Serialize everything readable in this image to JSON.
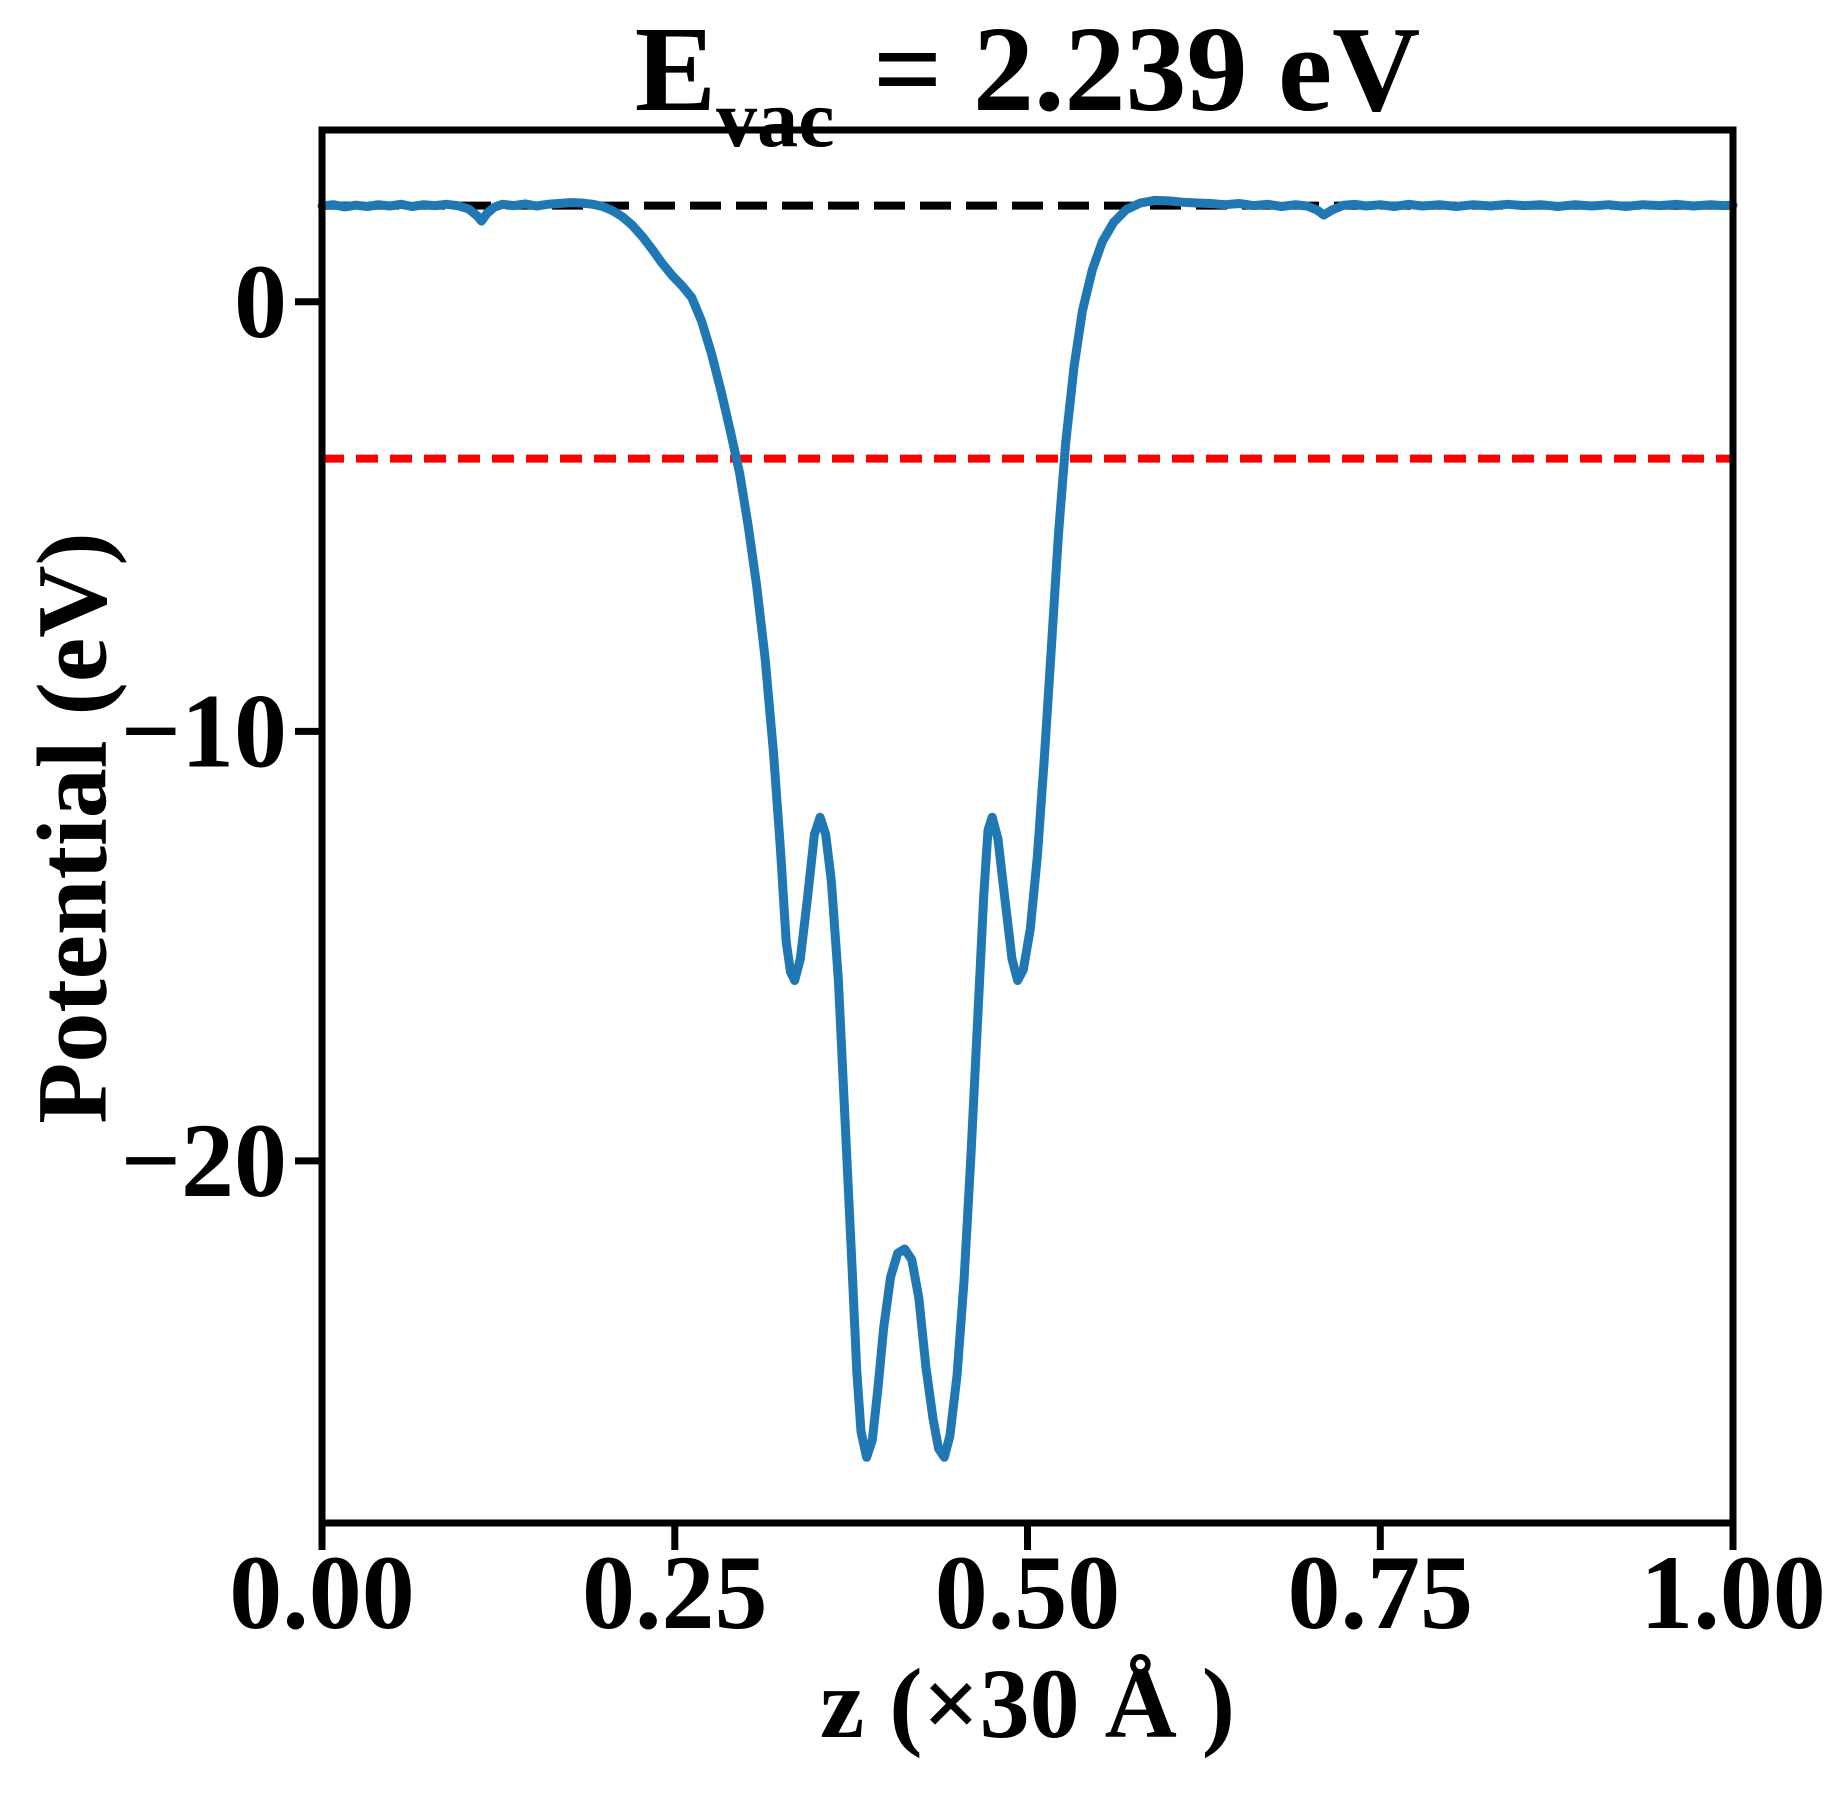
{
  "title": {
    "prefix": "E",
    "subscript": "vac",
    "suffix": " = 2.239 eV"
  },
  "colors": {
    "curve": "#1f77b4",
    "vacuum_line": "#000000",
    "reference_line": "#ff0000",
    "spine": "#000000",
    "background": "#ffffff"
  },
  "chart_data": {
    "type": "line",
    "title": "E_vac = 2.239 eV",
    "xlabel": "z (×30 Å )",
    "ylabel": "Potential (eV)",
    "xlim": [
      0.0,
      1.0
    ],
    "ylim": [
      -28.43,
      4.0
    ],
    "grid": false,
    "legend": null,
    "xticks": {
      "values": [
        0.0,
        0.25,
        0.5,
        0.75,
        1.0
      ],
      "labels": [
        "0.00",
        "0.25",
        "0.50",
        "0.75",
        "1.00"
      ]
    },
    "yticks": {
      "values": [
        0,
        -10,
        -20
      ],
      "labels": [
        "0",
        "−10",
        "−20"
      ]
    },
    "reference_lines": [
      {
        "name": "vacuum-level-line",
        "y": 2.239,
        "color": "#000000",
        "style": "dashed"
      },
      {
        "name": "reference-level-line",
        "y": -3.65,
        "color": "#ff0000",
        "style": "dashed"
      }
    ],
    "series": [
      {
        "name": "planar-average-potential",
        "color": "#1f77b4",
        "style": "solid",
        "points": [
          [
            0.0,
            2.23
          ],
          [
            0.008,
            2.26
          ],
          [
            0.016,
            2.21
          ],
          [
            0.024,
            2.25
          ],
          [
            0.032,
            2.22
          ],
          [
            0.04,
            2.26
          ],
          [
            0.048,
            2.23
          ],
          [
            0.056,
            2.27
          ],
          [
            0.064,
            2.22
          ],
          [
            0.072,
            2.26
          ],
          [
            0.08,
            2.24
          ],
          [
            0.088,
            2.27
          ],
          [
            0.096,
            2.24
          ],
          [
            0.104,
            2.16
          ],
          [
            0.11,
            2.0
          ],
          [
            0.113,
            1.88
          ],
          [
            0.117,
            2.06
          ],
          [
            0.122,
            2.2
          ],
          [
            0.128,
            2.27
          ],
          [
            0.136,
            2.24
          ],
          [
            0.144,
            2.28
          ],
          [
            0.152,
            2.23
          ],
          [
            0.16,
            2.27
          ],
          [
            0.168,
            2.29
          ],
          [
            0.176,
            2.31
          ],
          [
            0.184,
            2.3
          ],
          [
            0.192,
            2.27
          ],
          [
            0.199,
            2.22
          ],
          [
            0.206,
            2.12
          ],
          [
            0.213,
            1.98
          ],
          [
            0.22,
            1.78
          ],
          [
            0.227,
            1.52
          ],
          [
            0.234,
            1.22
          ],
          [
            0.241,
            0.9
          ],
          [
            0.248,
            0.62
          ],
          [
            0.255,
            0.38
          ],
          [
            0.262,
            0.1
          ],
          [
            0.269,
            -0.45
          ],
          [
            0.276,
            -1.2
          ],
          [
            0.283,
            -2.1
          ],
          [
            0.29,
            -3.1
          ],
          [
            0.296,
            -4.0
          ],
          [
            0.302,
            -5.2
          ],
          [
            0.308,
            -6.6
          ],
          [
            0.314,
            -8.3
          ],
          [
            0.32,
            -10.5
          ],
          [
            0.325,
            -12.8
          ],
          [
            0.329,
            -14.9
          ],
          [
            0.332,
            -15.6
          ],
          [
            0.335,
            -15.8
          ],
          [
            0.339,
            -15.3
          ],
          [
            0.344,
            -13.9
          ],
          [
            0.349,
            -12.4
          ],
          [
            0.353,
            -12.0
          ],
          [
            0.357,
            -12.4
          ],
          [
            0.361,
            -13.5
          ],
          [
            0.366,
            -15.8
          ],
          [
            0.37,
            -18.6
          ],
          [
            0.375,
            -22.0
          ],
          [
            0.379,
            -24.9
          ],
          [
            0.382,
            -26.3
          ],
          [
            0.386,
            -26.9
          ],
          [
            0.39,
            -26.5
          ],
          [
            0.394,
            -25.3
          ],
          [
            0.398,
            -23.9
          ],
          [
            0.403,
            -22.7
          ],
          [
            0.408,
            -22.15
          ],
          [
            0.413,
            -22.05
          ],
          [
            0.418,
            -22.3
          ],
          [
            0.423,
            -23.2
          ],
          [
            0.428,
            -24.8
          ],
          [
            0.433,
            -26.0
          ],
          [
            0.437,
            -26.7
          ],
          [
            0.441,
            -26.9
          ],
          [
            0.445,
            -26.4
          ],
          [
            0.45,
            -25.0
          ],
          [
            0.455,
            -22.8
          ],
          [
            0.46,
            -19.8
          ],
          [
            0.465,
            -16.5
          ],
          [
            0.469,
            -13.8
          ],
          [
            0.472,
            -12.3
          ],
          [
            0.475,
            -12.0
          ],
          [
            0.479,
            -12.5
          ],
          [
            0.484,
            -13.9
          ],
          [
            0.489,
            -15.3
          ],
          [
            0.493,
            -15.8
          ],
          [
            0.497,
            -15.55
          ],
          [
            0.502,
            -14.6
          ],
          [
            0.507,
            -12.9
          ],
          [
            0.512,
            -10.6
          ],
          [
            0.517,
            -8.0
          ],
          [
            0.522,
            -5.4
          ],
          [
            0.527,
            -3.3
          ],
          [
            0.533,
            -1.5
          ],
          [
            0.539,
            -0.2
          ],
          [
            0.546,
            0.75
          ],
          [
            0.553,
            1.4
          ],
          [
            0.561,
            1.85
          ],
          [
            0.57,
            2.15
          ],
          [
            0.58,
            2.3
          ],
          [
            0.59,
            2.36
          ],
          [
            0.6,
            2.35
          ],
          [
            0.61,
            2.32
          ],
          [
            0.62,
            2.3
          ],
          [
            0.63,
            2.29
          ],
          [
            0.64,
            2.26
          ],
          [
            0.65,
            2.29
          ],
          [
            0.66,
            2.24
          ],
          [
            0.67,
            2.27
          ],
          [
            0.68,
            2.22
          ],
          [
            0.69,
            2.26
          ],
          [
            0.698,
            2.23
          ],
          [
            0.705,
            2.14
          ],
          [
            0.71,
            2.02
          ],
          [
            0.716,
            2.14
          ],
          [
            0.724,
            2.25
          ],
          [
            0.732,
            2.27
          ],
          [
            0.74,
            2.23
          ],
          [
            0.75,
            2.26
          ],
          [
            0.76,
            2.22
          ],
          [
            0.77,
            2.27
          ],
          [
            0.78,
            2.23
          ],
          [
            0.792,
            2.26
          ],
          [
            0.804,
            2.22
          ],
          [
            0.816,
            2.26
          ],
          [
            0.828,
            2.23
          ],
          [
            0.84,
            2.27
          ],
          [
            0.852,
            2.24
          ],
          [
            0.864,
            2.26
          ],
          [
            0.876,
            2.22
          ],
          [
            0.888,
            2.26
          ],
          [
            0.9,
            2.23
          ],
          [
            0.912,
            2.26
          ],
          [
            0.924,
            2.22
          ],
          [
            0.936,
            2.26
          ],
          [
            0.948,
            2.24
          ],
          [
            0.96,
            2.27
          ],
          [
            0.972,
            2.23
          ],
          [
            0.984,
            2.26
          ],
          [
            0.993,
            2.24
          ],
          [
            1.0,
            2.25
          ]
        ]
      }
    ]
  }
}
